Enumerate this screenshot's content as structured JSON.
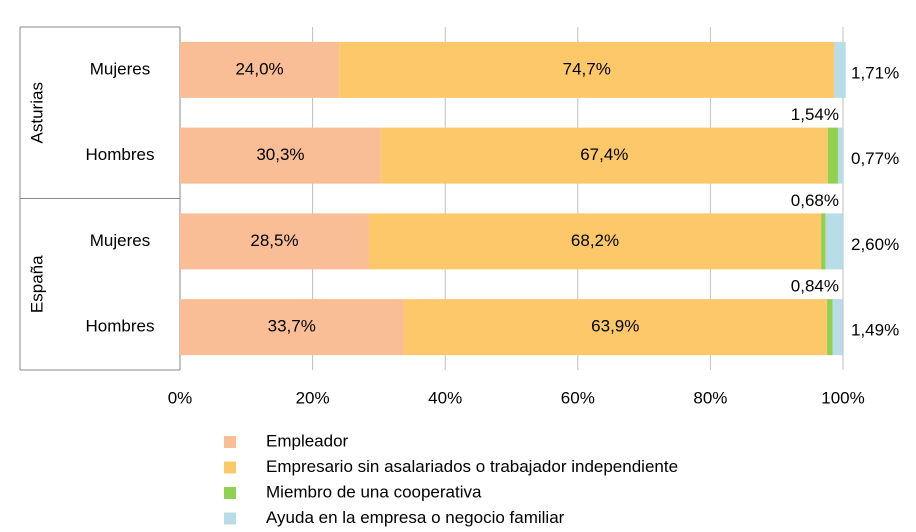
{
  "chart_data": {
    "type": "stacked-bar-horizontal",
    "categories": [
      "Mujeres",
      "Hombres",
      "Mujeres",
      "Hombres"
    ],
    "groups": [
      {
        "label": "Asturias",
        "size": 2
      },
      {
        "label": "España",
        "size": 2
      }
    ],
    "series": [
      {
        "name": "Empleador",
        "color": "#f9be95",
        "values": [
          24.0,
          30.3,
          28.5,
          33.7
        ],
        "value_labels": [
          "24,0%",
          "30,3%",
          "28,5%",
          "33,7%"
        ]
      },
      {
        "name": "Empresario sin asalariados o trabajador independiente",
        "color": "#fdc86a",
        "values": [
          74.7,
          67.4,
          68.2,
          63.9
        ],
        "value_labels": [
          "74,7%",
          "67,4%",
          "68,2%",
          "63,9%"
        ]
      },
      {
        "name": "Miembro de una cooperativa",
        "color": "#92d050",
        "values": [
          0,
          1.54,
          0.68,
          0.84
        ],
        "value_labels": [
          null,
          "1,54%",
          "0,68%",
          "0,84%"
        ]
      },
      {
        "name": "Ayuda en la empresa o negocio familiar",
        "color": "#b7dde8",
        "values": [
          1.71,
          0.77,
          2.6,
          1.49
        ],
        "value_labels": [
          "1,71%",
          "0,77%",
          "2,60%",
          "1,49%"
        ]
      }
    ],
    "xlim": [
      0,
      100
    ],
    "xticks": [
      {
        "value": 0,
        "label": "0%"
      },
      {
        "value": 20,
        "label": "20%"
      },
      {
        "value": 40,
        "label": "40%"
      },
      {
        "value": 60,
        "label": "60%"
      },
      {
        "value": 80,
        "label": "80%"
      },
      {
        "value": 100,
        "label": "100%"
      }
    ],
    "grid": true
  }
}
